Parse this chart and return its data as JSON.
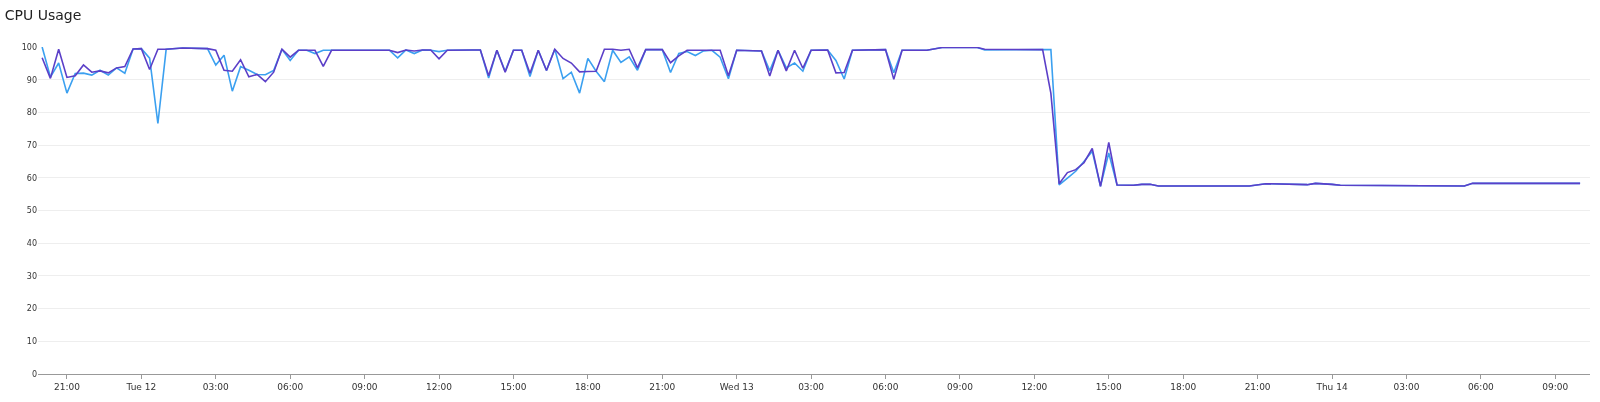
{
  "chart_data": {
    "type": "line",
    "title": "CPU Usage",
    "x": [
      "--03-11T20:00",
      "--03-11T20:20",
      "--03-11T20:40",
      "--03-11T21:00",
      "--03-11T21:20",
      "--03-11T21:40",
      "--03-11T22:00",
      "--03-11T22:20",
      "--03-11T22:40",
      "--03-11T23:00",
      "--03-11T23:20",
      "--03-11T23:40",
      "--03-12T00:00",
      "--03-12T00:20",
      "--03-12T00:40",
      "--03-12T01:00",
      "--03-12T01:40",
      "--03-12T02:40",
      "--03-12T03:00",
      "--03-12T03:20",
      "--03-12T03:40",
      "--03-12T04:00",
      "--03-12T04:20",
      "--03-12T04:40",
      "--03-12T05:00",
      "--03-12T05:20",
      "--03-12T05:40",
      "--03-12T06:00",
      "--03-12T06:20",
      "--03-12T06:40",
      "--03-12T07:00",
      "--03-12T07:20",
      "--03-12T07:40",
      "--03-12T10:00",
      "--03-12T10:20",
      "--03-12T10:40",
      "--03-12T11:00",
      "--03-12T11:20",
      "--03-12T11:40",
      "--03-12T12:00",
      "--03-12T12:20",
      "--03-12T13:20",
      "--03-12T13:40",
      "--03-12T14:00",
      "--03-12T14:20",
      "--03-12T14:40",
      "--03-12T15:00",
      "--03-12T15:20",
      "--03-12T15:40",
      "--03-12T16:00",
      "--03-12T16:20",
      "--03-12T16:40",
      "--03-12T17:00",
      "--03-12T17:20",
      "--03-12T17:40",
      "--03-12T18:00",
      "--03-12T18:20",
      "--03-12T18:40",
      "--03-12T19:00",
      "--03-12T19:20",
      "--03-12T19:40",
      "--03-12T20:00",
      "--03-12T20:20",
      "--03-12T21:00",
      "--03-12T21:20",
      "--03-12T21:40",
      "--03-12T22:00",
      "--03-12T22:20",
      "--03-12T22:40",
      "--03-12T23:00",
      "--03-12T23:20",
      "--03-12T23:40",
      "--03-13T00:00",
      "--03-13T01:00",
      "--03-13T01:20",
      "--03-13T01:40",
      "--03-13T02:00",
      "--03-13T02:20",
      "--03-13T02:40",
      "--03-13T03:00",
      "--03-13T03:40",
      "--03-13T04:00",
      "--03-13T04:20",
      "--03-13T04:40",
      "--03-13T06:00",
      "--03-13T06:20",
      "--03-13T06:40",
      "--03-13T07:40",
      "--03-13T08:20",
      "--03-13T09:40",
      "--03-13T10:00",
      "--03-13T12:20",
      "--03-13T12:40",
      "--03-13T13:00",
      "--03-13T13:20",
      "--03-13T13:40",
      "--03-13T14:00",
      "--03-13T14:20",
      "--03-13T14:40",
      "--03-13T15:00",
      "--03-13T15:20",
      "--03-13T16:00",
      "--03-13T16:20",
      "--03-13T16:40",
      "--03-13T17:00",
      "--03-13T20:40",
      "--03-13T21:20",
      "--03-13T23:00",
      "--03-13T23:20",
      "--03-14T00:00",
      "--03-14T00:20",
      "--03-14T05:20",
      "--03-14T05:40",
      "--03-14T10:00"
    ],
    "series": [
      {
        "color": "#3ba0f0",
        "values": [
          100,
          90.8,
          95.1,
          85.9,
          91.9,
          92.0,
          91.4,
          92.9,
          91.4,
          93.6,
          92.0,
          99.4,
          99.5,
          96.6,
          76.6,
          99.3,
          99.7,
          99.5,
          94.5,
          97.5,
          86.5,
          94.0,
          92.9,
          91.6,
          91.5,
          92.8,
          99.3,
          95.9,
          99.0,
          99.0,
          98.0,
          99.0,
          99.0,
          99.0,
          96.7,
          99.1,
          98.0,
          99.1,
          99.0,
          98.6,
          99.0,
          99.1,
          99.1,
          90.5,
          99.0,
          92.6,
          99.0,
          99.0,
          91.0,
          99.0,
          92.8,
          99.3,
          90.3,
          92.3,
          85.9,
          96.5,
          92.6,
          89.4,
          99.0,
          95.3,
          97.0,
          92.9,
          99.2,
          99.2,
          92.2,
          98.0,
          98.6,
          97.4,
          98.8,
          99.0,
          96.9,
          90.3,
          99.0,
          98.8,
          92.7,
          99.0,
          93.6,
          95.1,
          92.6,
          99.0,
          99.1,
          95.9,
          90.2,
          99.0,
          99.2,
          92.1,
          99.0,
          99.0,
          99.9,
          99.9,
          99.1,
          99.2,
          99.2,
          57.8,
          59.9,
          62.0,
          65.0,
          68.1,
          57.4,
          67.6,
          57.8,
          57.7,
          58.0,
          58.0,
          57.5,
          57.5,
          58.2,
          57.9,
          58.3,
          58.0,
          57.7,
          57.5,
          58.3,
          58.3
        ]
      },
      {
        "color": "#5b3fc8",
        "values": [
          96.7,
          90.4,
          99.3,
          90.7,
          91.2,
          94.5,
          92.3,
          92.7,
          92.1,
          93.6,
          94.0,
          99.4,
          99.5,
          93.1,
          99.3,
          99.3,
          99.7,
          99.5,
          99.0,
          92.9,
          92.6,
          96.1,
          90.9,
          91.6,
          89.4,
          92.3,
          99.3,
          96.9,
          99.0,
          99.0,
          99.0,
          94.1,
          99.0,
          99.0,
          98.3,
          99.1,
          98.8,
          99.1,
          99.1,
          96.4,
          99.0,
          99.1,
          99.1,
          91.2,
          99.0,
          92.3,
          99.0,
          99.0,
          92.0,
          99.0,
          92.8,
          99.3,
          96.5,
          95.1,
          92.4,
          92.5,
          92.6,
          99.3,
          99.3,
          99.0,
          99.3,
          93.6,
          99.2,
          99.2,
          95.2,
          97.3,
          99.0,
          99.0,
          99.0,
          99.0,
          99.0,
          91.2,
          99.0,
          98.8,
          91.1,
          99.0,
          92.7,
          99.0,
          93.5,
          99.0,
          99.1,
          92.1,
          92.2,
          99.0,
          99.2,
          90.1,
          99.0,
          99.0,
          99.9,
          99.9,
          99.3,
          99.2,
          85.8,
          58.2,
          61.6,
          62.5,
          64.6,
          69.0,
          57.4,
          70.8,
          57.8,
          57.7,
          58.0,
          58.0,
          57.5,
          57.5,
          58.2,
          57.9,
          58.3,
          58.0,
          57.7,
          57.5,
          58.3,
          58.3
        ]
      }
    ],
    "xlim": [
      "--03-11T19:50",
      "--03-14T10:24"
    ],
    "xticks": [
      {
        "value": "--03-11T21:00",
        "label": "21:00"
      },
      {
        "value": "--03-12T00:00",
        "label": "Tue 12"
      },
      {
        "value": "--03-12T03:00",
        "label": "03:00"
      },
      {
        "value": "--03-12T06:00",
        "label": "06:00"
      },
      {
        "value": "--03-12T09:00",
        "label": "09:00"
      },
      {
        "value": "--03-12T12:00",
        "label": "12:00"
      },
      {
        "value": "--03-12T15:00",
        "label": "15:00"
      },
      {
        "value": "--03-12T18:00",
        "label": "18:00"
      },
      {
        "value": "--03-12T21:00",
        "label": "21:00"
      },
      {
        "value": "--03-13T00:00",
        "label": "Wed 13"
      },
      {
        "value": "--03-13T03:00",
        "label": "03:00"
      },
      {
        "value": "--03-13T06:00",
        "label": "06:00"
      },
      {
        "value": "--03-13T09:00",
        "label": "09:00"
      },
      {
        "value": "--03-13T12:00",
        "label": "12:00"
      },
      {
        "value": "--03-13T15:00",
        "label": "15:00"
      },
      {
        "value": "--03-13T18:00",
        "label": "18:00"
      },
      {
        "value": "--03-13T21:00",
        "label": "21:00"
      },
      {
        "value": "--03-14T00:00",
        "label": "Thu 14"
      },
      {
        "value": "--03-14T03:00",
        "label": "03:00"
      },
      {
        "value": "--03-14T06:00",
        "label": "06:00"
      },
      {
        "value": "--03-14T09:00",
        "label": "09:00"
      }
    ],
    "ylim": [
      0,
      100
    ],
    "yticks": [
      0,
      10,
      20,
      30,
      40,
      50,
      60,
      70,
      80,
      90,
      100
    ],
    "grid": "y",
    "marker": "none",
    "line_style": "solid"
  }
}
